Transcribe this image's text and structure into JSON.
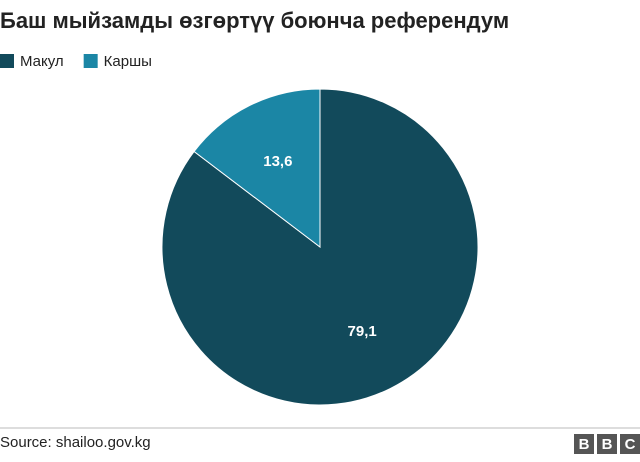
{
  "chart_data": {
    "type": "pie",
    "title": "Баш мыйзамды өзгөртүү боюнча референдум",
    "series": [
      {
        "name": "Макул",
        "color": "#124a5b",
        "values": [
          79.1
        ],
        "value_labels": [
          "79,1"
        ]
      },
      {
        "name": "Каршы",
        "color": "#1b86a5",
        "values": [
          13.6
        ],
        "value_labels": [
          "13,6"
        ]
      }
    ],
    "source": "Source: shailoo.gov.kg",
    "logo": [
      "B",
      "B",
      "C"
    ]
  }
}
